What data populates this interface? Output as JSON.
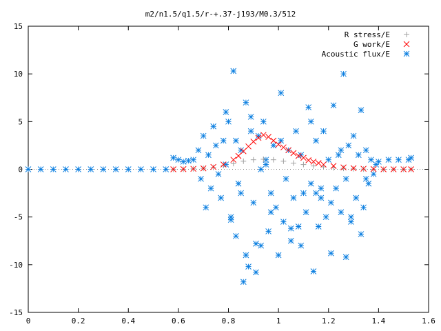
{
  "chart_data": {
    "type": "scatter",
    "title": "m2/n1.5/q1.5/r-+.37-j193/M0.3/512",
    "xlabel": "",
    "ylabel": "",
    "xlim": [
      0,
      1.6
    ],
    "ylim": [
      -15,
      15
    ],
    "x_ticks": [
      0,
      0.2,
      0.4,
      0.6,
      0.8,
      1,
      1.2,
      1.4,
      1.6
    ],
    "x_tick_labels": [
      "0",
      "0.2",
      "0.4",
      "0.6",
      "0.8",
      "1",
      "1.2",
      "1.4",
      "1.6"
    ],
    "y_ticks": [
      -15,
      -10,
      -5,
      0,
      5,
      10,
      15
    ],
    "y_tick_labels": [
      "-15",
      "-10",
      "-5",
      "0",
      "5",
      "10",
      "15"
    ],
    "grid": false,
    "legend_position": "top-right",
    "series": [
      {
        "name": "R stress/E",
        "marker": "plus",
        "color": "#a0a0a0",
        "x": [
          0.58,
          0.62,
          0.66,
          0.7,
          0.74,
          0.78,
          0.82,
          0.86,
          0.9,
          0.94,
          0.98,
          1.02,
          1.06,
          1.1,
          1.14,
          1.18,
          1.22,
          1.26,
          1.3,
          1.34,
          1.38,
          1.42,
          1.46,
          1.5,
          1.53
        ],
        "y": [
          0.0,
          0.0,
          0.05,
          0.1,
          0.2,
          0.4,
          0.6,
          0.85,
          1.0,
          1.05,
          1.0,
          0.85,
          0.65,
          0.5,
          0.35,
          0.25,
          0.15,
          0.1,
          0.05,
          0.02,
          0.0,
          0.0,
          0.0,
          0.0,
          0.0
        ]
      },
      {
        "name": "G work/E",
        "marker": "cross",
        "color": "#ff0000",
        "x": [
          0.58,
          0.62,
          0.66,
          0.7,
          0.74,
          0.78,
          0.82,
          0.84,
          0.86,
          0.88,
          0.9,
          0.92,
          0.94,
          0.96,
          0.98,
          1.0,
          1.02,
          1.04,
          1.06,
          1.08,
          1.1,
          1.12,
          1.14,
          1.16,
          1.18,
          1.22,
          1.26,
          1.3,
          1.34,
          1.38,
          1.42,
          1.46,
          1.5,
          1.53
        ],
        "y": [
          0.0,
          0.02,
          0.05,
          0.1,
          0.25,
          0.5,
          1.0,
          1.4,
          1.9,
          2.4,
          2.9,
          3.3,
          3.6,
          3.4,
          3.0,
          2.6,
          2.3,
          2.0,
          1.7,
          1.4,
          1.2,
          0.95,
          0.8,
          0.65,
          0.5,
          0.35,
          0.2,
          0.12,
          0.06,
          0.03,
          0.0,
          0.0,
          0.0,
          0.0
        ]
      },
      {
        "name": "Acoustic flux/E",
        "marker": "star",
        "color": "#0a7ee0",
        "x": [
          0.0,
          0.05,
          0.1,
          0.15,
          0.2,
          0.25,
          0.3,
          0.35,
          0.4,
          0.45,
          0.5,
          0.55,
          0.58,
          0.6,
          0.62,
          0.64,
          0.66,
          0.68,
          0.69,
          0.7,
          0.71,
          0.72,
          0.73,
          0.74,
          0.75,
          0.76,
          0.77,
          0.78,
          0.79,
          0.8,
          0.81,
          0.82,
          0.83,
          0.84,
          0.85,
          0.86,
          0.87,
          0.88,
          0.89,
          0.9,
          0.91,
          0.92,
          0.93,
          0.94,
          0.95,
          0.96,
          0.97,
          0.98,
          0.99,
          1.0,
          1.01,
          1.02,
          1.03,
          1.04,
          1.05,
          1.06,
          1.07,
          1.08,
          1.09,
          1.1,
          1.11,
          1.12,
          1.13,
          1.14,
          1.15,
          1.16,
          1.17,
          1.18,
          1.19,
          1.2,
          1.21,
          1.22,
          1.23,
          1.24,
          1.25,
          1.26,
          1.27,
          1.28,
          1.29,
          1.3,
          1.31,
          1.32,
          1.33,
          1.34,
          1.35,
          1.36,
          1.37,
          1.38,
          1.39,
          1.4,
          1.44,
          1.48,
          1.52,
          1.53,
          0.81,
          0.83,
          0.85,
          0.87,
          0.89,
          0.91,
          0.93,
          0.97,
          1.01,
          1.05,
          1.09,
          1.13,
          1.17,
          1.21,
          1.25,
          1.29,
          1.33,
          0.79,
          0.95,
          1.15,
          1.27,
          1.35
        ],
        "y": [
          0,
          0,
          0,
          0,
          0,
          0,
          0,
          0,
          0,
          0,
          0,
          0,
          1.2,
          1.0,
          0.8,
          0.9,
          1.0,
          2.0,
          -1.0,
          3.5,
          -4.0,
          1.5,
          -2.0,
          4.5,
          2.5,
          -0.5,
          -3.0,
          3.0,
          0.5,
          5.0,
          -5.3,
          10.3,
          -7.0,
          -1.5,
          2.0,
          -11.8,
          7.0,
          -10.2,
          4.0,
          -3.5,
          -10.8,
          3.5,
          -8.0,
          5.0,
          1.0,
          -6.5,
          -2.5,
          2.5,
          -4.0,
          -9.0,
          3.0,
          -5.5,
          -1.0,
          2.0,
          -7.5,
          -3.0,
          4.0,
          -6.0,
          1.5,
          -2.5,
          -4.5,
          6.5,
          -1.5,
          -10.7,
          3.0,
          -6.0,
          -2.0,
          4.0,
          -5.0,
          1.0,
          -3.5,
          6.7,
          -2.0,
          1.5,
          -4.5,
          10.0,
          -1.0,
          2.5,
          -5.5,
          3.5,
          -3.0,
          1.5,
          6.2,
          -4.0,
          2.0,
          -1.5,
          1.0,
          -0.5,
          0.5,
          0.8,
          1.0,
          1.0,
          1.0,
          1.2,
          -5.0,
          3.0,
          -2.5,
          -9.0,
          5.5,
          -7.8,
          0.0,
          -4.5,
          8.0,
          -6.2,
          -8.0,
          5.0,
          -3.0,
          -8.8,
          2.0,
          -5.0,
          -6.8,
          6.0,
          0.5,
          -2.5,
          -9.2,
          -1.0
        ]
      }
    ]
  }
}
